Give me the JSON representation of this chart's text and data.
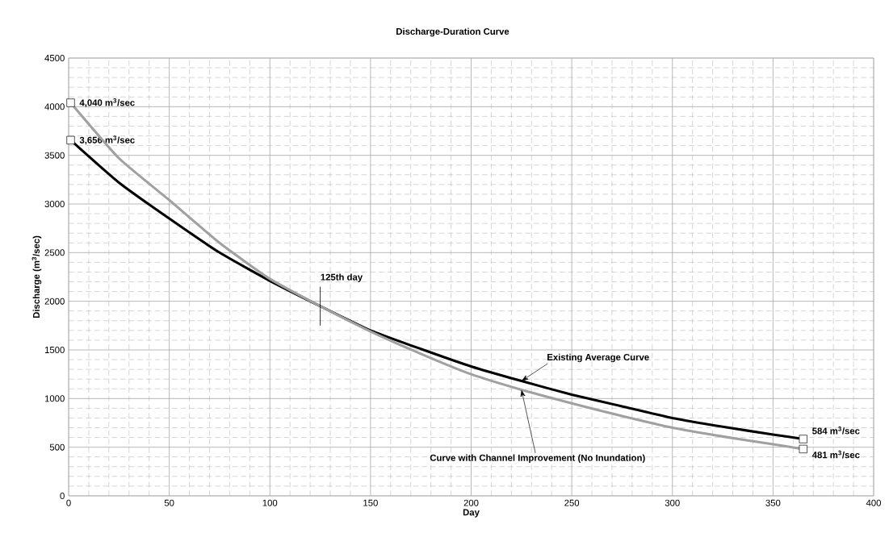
{
  "chart_data": {
    "type": "line",
    "title": "Discharge-Duration Curve",
    "xlabel": "Day",
    "ylabel": "Discharge (m$^{3}$/sec)",
    "x": [
      1,
      25,
      50,
      75,
      100,
      125,
      150,
      175,
      200,
      225,
      250,
      275,
      300,
      325,
      350,
      365
    ],
    "series": [
      {
        "name": "Existing Average Curve",
        "color": "#000000",
        "values": [
          3656,
          3220,
          2850,
          2500,
          2210,
          1950,
          1700,
          1510,
          1330,
          1180,
          1040,
          920,
          800,
          710,
          630,
          584
        ],
        "value_labels": [
          "3,656 m$^{3}$/sec",
          null,
          null,
          null,
          null,
          null,
          null,
          null,
          null,
          null,
          null,
          null,
          null,
          null,
          null,
          "584 m$^{3}$/sec"
        ]
      },
      {
        "name": "Curve with Channel Improvement (No Inundation)",
        "color": "#a0a0a0",
        "values": [
          4040,
          3470,
          3040,
          2600,
          2230,
          1950,
          1690,
          1460,
          1250,
          1090,
          950,
          820,
          700,
          610,
          530,
          481
        ],
        "value_labels": [
          "4,040 m$^{3}$/sec",
          null,
          null,
          null,
          null,
          null,
          null,
          null,
          null,
          null,
          null,
          null,
          null,
          null,
          null,
          "481 m$^{3}$/sec"
        ]
      }
    ],
    "annotations": [
      {
        "text": "125th day",
        "x": 125,
        "y": 1950
      }
    ],
    "xlim": [
      0,
      400
    ],
    "ylim": [
      0,
      4500
    ],
    "xticks": [
      0,
      50,
      100,
      150,
      200,
      250,
      300,
      350,
      400
    ],
    "yticks": [
      0,
      500,
      1000,
      1500,
      2000,
      2500,
      3000,
      3500,
      4000,
      4500
    ],
    "grid": true
  }
}
